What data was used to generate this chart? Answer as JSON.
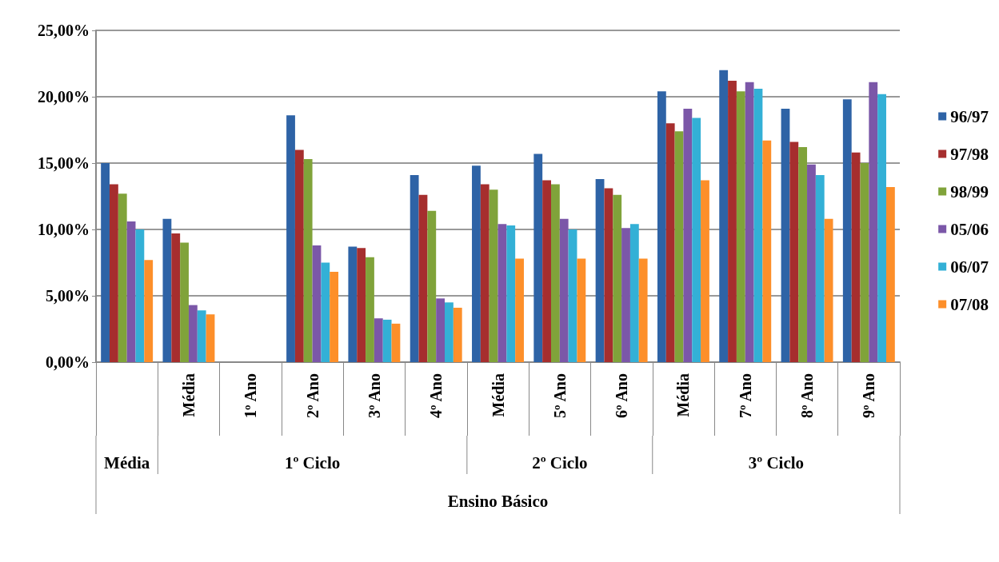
{
  "chart_data": {
    "type": "bar",
    "xlabel": "Ensino Básico",
    "categories": [
      null,
      "Média",
      "1º Ano",
      "2º Ano",
      "3º Ano",
      "4º Ano",
      "Média",
      "5º Ano",
      "6º Ano",
      "Média",
      "7º Ano",
      "8º Ano",
      "9º Ano"
    ],
    "annotations": [
      "Média",
      "1º Ciclo",
      "2º Ciclo",
      "3º Ciclo"
    ],
    "series": [
      {
        "name": "96/97",
        "color": "#2e63a6",
        "values": [
          15.0,
          10.8,
          null,
          18.6,
          8.7,
          14.1,
          14.8,
          15.7,
          13.8,
          20.4,
          22.0,
          19.1,
          19.8
        ]
      },
      {
        "name": "97/98",
        "color": "#a62e2e",
        "values": [
          13.4,
          9.7,
          null,
          16.0,
          8.6,
          12.6,
          13.4,
          13.7,
          13.1,
          18.0,
          21.2,
          16.6,
          15.8
        ]
      },
      {
        "name": "98/99",
        "color": "#80a33a",
        "values": [
          12.7,
          9.0,
          null,
          15.3,
          7.9,
          11.4,
          13.0,
          13.4,
          12.6,
          17.4,
          20.4,
          16.2,
          15.0
        ]
      },
      {
        "name": "05/06",
        "color": "#7b57a8",
        "values": [
          10.6,
          4.3,
          null,
          8.8,
          3.3,
          4.8,
          10.4,
          10.8,
          10.1,
          19.1,
          21.1,
          14.9,
          21.1
        ]
      },
      {
        "name": "06/07",
        "color": "#33b0d6",
        "values": [
          10.0,
          3.9,
          null,
          7.5,
          3.2,
          4.5,
          10.3,
          10.0,
          10.4,
          18.4,
          20.6,
          14.1,
          20.2
        ]
      },
      {
        "name": "07/08",
        "color": "#fd8f2a",
        "values": [
          7.7,
          3.6,
          null,
          6.8,
          2.9,
          4.1,
          7.8,
          7.8,
          7.8,
          13.7,
          16.7,
          10.8,
          13.2
        ]
      }
    ],
    "ylim": [
      0,
      25
    ],
    "yticks": [
      {
        "value": 0,
        "label": "0,00%"
      },
      {
        "value": 5,
        "label": "5,00%"
      },
      {
        "value": 10,
        "label": "10,00%"
      },
      {
        "value": 15,
        "label": "15,00%"
      },
      {
        "value": 20,
        "label": "20,00%"
      },
      {
        "value": 25,
        "label": "25,00%"
      }
    ],
    "grid": "y",
    "legend": "right"
  }
}
